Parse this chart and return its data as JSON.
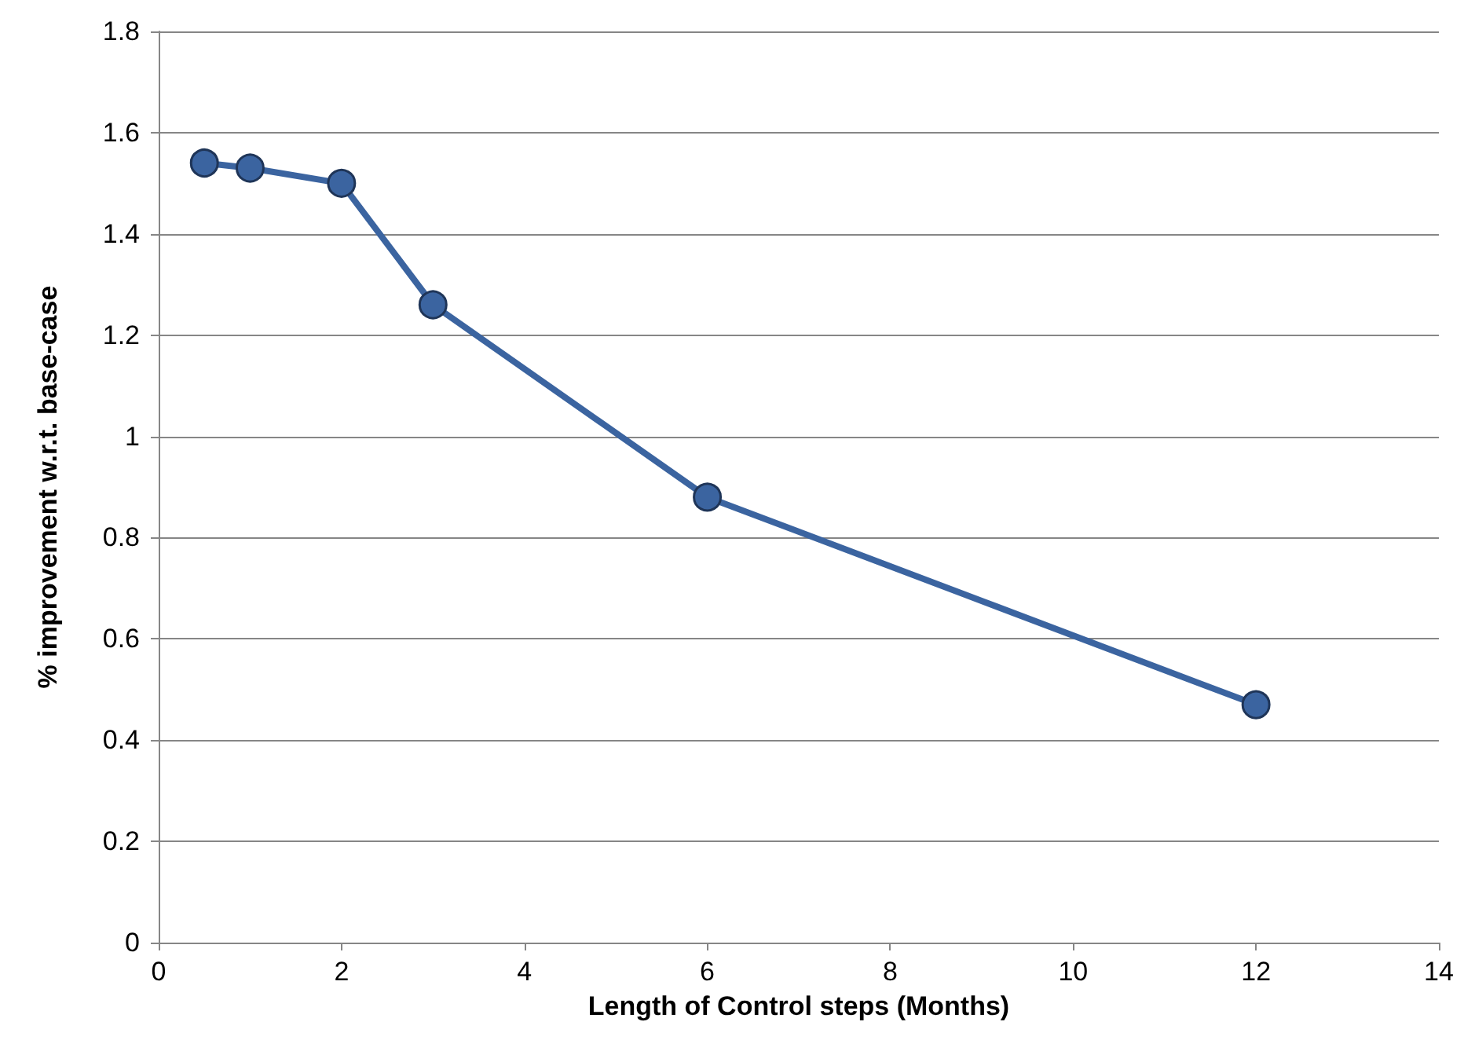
{
  "chart_data": {
    "type": "line",
    "xlabel": "Length of Control steps (Months)",
    "ylabel": "% improvement w.r.t. base-case",
    "x": [
      0.5,
      1,
      2,
      3,
      6,
      12
    ],
    "series": [
      {
        "color": "#3b64a0",
        "values": [
          1.54,
          1.53,
          1.5,
          1.26,
          0.88,
          0.47
        ]
      }
    ],
    "xlim": [
      0,
      14
    ],
    "xticks": [
      0,
      2,
      4,
      6,
      8,
      10,
      12,
      14
    ],
    "ylim": [
      0,
      1.8
    ],
    "yticks": [
      0,
      0.2,
      0.4,
      0.6,
      0.8,
      1,
      1.2,
      1.4,
      1.6,
      1.8
    ],
    "grid": "y",
    "marker": "circle",
    "line_style": "solid"
  }
}
